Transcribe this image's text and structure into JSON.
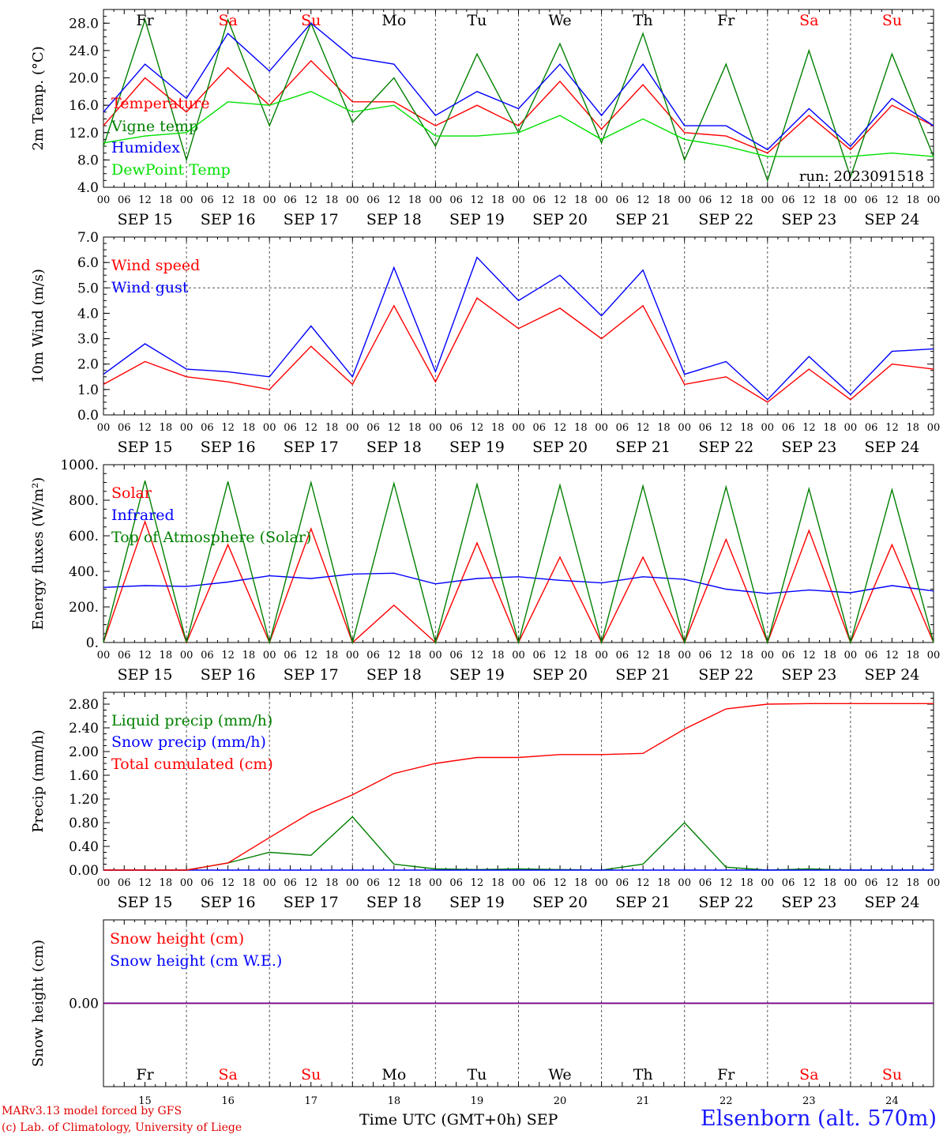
{
  "chart_data": [
    {
      "type": "line",
      "ylabel": "2m Temp. (°C)",
      "ylim": [
        4,
        30
      ],
      "yticks": [
        "4.0",
        "8.0",
        "12.0",
        "16.0",
        "20.0",
        "24.0",
        "28.0"
      ],
      "legend_placement": "left",
      "annotation": "run: 2023091518",
      "x": [
        "2023-09-15 00",
        "2023-09-15 12",
        "2023-09-16 00",
        "2023-09-16 12",
        "2023-09-17 00",
        "2023-09-17 12",
        "2023-09-18 00",
        "2023-09-18 12",
        "2023-09-19 00",
        "2023-09-19 12",
        "2023-09-20 00",
        "2023-09-20 12",
        "2023-09-21 00",
        "2023-09-21 12",
        "2023-09-22 00",
        "2023-09-22 12",
        "2023-09-23 00",
        "2023-09-23 12",
        "2023-09-24 00",
        "2023-09-24 12",
        "2023-09-25 00"
      ],
      "series": [
        {
          "name": "Temperature",
          "color": "#ff0000",
          "values": [
            13.0,
            20.0,
            15.0,
            21.5,
            16.0,
            22.5,
            16.5,
            16.5,
            13.0,
            16.0,
            13.0,
            19.5,
            12.5,
            19.0,
            12.0,
            11.5,
            9.0,
            14.5,
            9.5,
            16.0,
            13.0
          ]
        },
        {
          "name": "Vigne temp",
          "color": "#008000",
          "values": [
            10.0,
            28.5,
            8.0,
            28.5,
            13.0,
            28.0,
            13.5,
            20.0,
            10.0,
            23.5,
            12.0,
            25.0,
            10.5,
            26.5,
            8.0,
            22.0,
            5.0,
            24.0,
            5.5,
            23.5,
            8.5
          ]
        },
        {
          "name": "Humidex",
          "color": "#0000ff",
          "values": [
            15.0,
            22.0,
            17.0,
            26.5,
            21.0,
            28.0,
            23.0,
            22.0,
            14.5,
            18.0,
            15.5,
            22.0,
            14.5,
            22.0,
            13.0,
            13.0,
            9.5,
            15.5,
            10.0,
            17.0,
            13.0
          ]
        },
        {
          "name": "DewPoint Temp",
          "color": "#00e000",
          "values": [
            10.5,
            11.5,
            12.0,
            16.5,
            16.0,
            18.0,
            15.0,
            16.0,
            11.5,
            11.5,
            12.0,
            14.5,
            11.0,
            14.0,
            11.0,
            10.0,
            8.5,
            8.5,
            8.5,
            9.0,
            8.5
          ]
        }
      ]
    },
    {
      "type": "line",
      "ylabel": "10m Wind (m/s)",
      "ylim": [
        0,
        7
      ],
      "yticks": [
        "0.0",
        "1.0",
        "2.0",
        "3.0",
        "4.0",
        "5.0",
        "6.0",
        "7.0"
      ],
      "legend_placement": "left",
      "x": [
        "2023-09-15 00",
        "2023-09-15 12",
        "2023-09-16 00",
        "2023-09-16 12",
        "2023-09-17 00",
        "2023-09-17 12",
        "2023-09-18 00",
        "2023-09-18 12",
        "2023-09-19 00",
        "2023-09-19 12",
        "2023-09-20 00",
        "2023-09-20 12",
        "2023-09-21 00",
        "2023-09-21 12",
        "2023-09-22 00",
        "2023-09-22 12",
        "2023-09-23 00",
        "2023-09-23 12",
        "2023-09-24 00",
        "2023-09-24 12",
        "2023-09-25 00"
      ],
      "series": [
        {
          "name": "Wind speed",
          "color": "#ff0000",
          "values": [
            1.2,
            2.1,
            1.5,
            1.3,
            1.0,
            2.7,
            1.2,
            4.3,
            1.3,
            4.6,
            3.4,
            4.2,
            3.0,
            4.3,
            1.2,
            1.5,
            0.5,
            1.8,
            0.6,
            2.0,
            1.8
          ]
        },
        {
          "name": "Wind gust",
          "color": "#0000ff",
          "values": [
            1.6,
            2.8,
            1.8,
            1.7,
            1.5,
            3.5,
            1.5,
            5.8,
            1.7,
            6.2,
            4.5,
            5.5,
            3.9,
            5.7,
            1.6,
            2.1,
            0.6,
            2.3,
            0.8,
            2.5,
            2.6
          ]
        }
      ]
    },
    {
      "type": "line",
      "ylabel": "Energy fluxes (W/m²)",
      "ylim": [
        0,
        1000
      ],
      "yticks": [
        "0.",
        "200.",
        "400.",
        "600.",
        "800.",
        "1000."
      ],
      "legend_placement": "left",
      "x": [
        "2023-09-15 00",
        "2023-09-15 12",
        "2023-09-16 00",
        "2023-09-16 12",
        "2023-09-17 00",
        "2023-09-17 12",
        "2023-09-18 00",
        "2023-09-18 12",
        "2023-09-19 00",
        "2023-09-19 12",
        "2023-09-20 00",
        "2023-09-20 12",
        "2023-09-21 00",
        "2023-09-21 12",
        "2023-09-22 00",
        "2023-09-22 12",
        "2023-09-23 00",
        "2023-09-23 12",
        "2023-09-24 00",
        "2023-09-24 12",
        "2023-09-25 00"
      ],
      "series": [
        {
          "name": "Solar",
          "color": "#ff0000",
          "values": [
            0,
            680,
            0,
            550,
            0,
            640,
            0,
            210,
            0,
            560,
            0,
            480,
            0,
            480,
            0,
            580,
            0,
            630,
            0,
            550,
            0
          ]
        },
        {
          "name": "Infrared",
          "color": "#0000ff",
          "values": [
            310,
            320,
            315,
            340,
            375,
            360,
            385,
            390,
            330,
            360,
            370,
            350,
            335,
            370,
            355,
            300,
            275,
            295,
            280,
            320,
            290
          ]
        },
        {
          "name": "Top of Atmosphere (Solar)",
          "color": "#008000",
          "values": [
            0,
            910,
            0,
            905,
            0,
            900,
            0,
            895,
            0,
            890,
            0,
            885,
            0,
            880,
            0,
            875,
            0,
            865,
            0,
            860,
            0
          ]
        }
      ]
    },
    {
      "type": "line",
      "ylabel": "Precip (mm/h)",
      "ylim": [
        0,
        3.0
      ],
      "yticks": [
        "0.00",
        "0.40",
        "0.80",
        "1.20",
        "1.60",
        "2.00",
        "2.40",
        "2.80"
      ],
      "legend_placement": "left",
      "x": [
        "2023-09-15 00",
        "2023-09-15 12",
        "2023-09-16 00",
        "2023-09-16 12",
        "2023-09-17 00",
        "2023-09-17 12",
        "2023-09-18 00",
        "2023-09-18 12",
        "2023-09-19 00",
        "2023-09-19 12",
        "2023-09-20 00",
        "2023-09-20 12",
        "2023-09-21 00",
        "2023-09-21 12",
        "2023-09-22 00",
        "2023-09-22 12",
        "2023-09-23 00",
        "2023-09-23 12",
        "2023-09-24 00",
        "2023-09-24 12",
        "2023-09-25 00"
      ],
      "series": [
        {
          "name": "Liquid precip (mm/h)",
          "color": "#008000",
          "values": [
            0,
            0,
            0,
            0.12,
            0.3,
            0.25,
            0.9,
            0.1,
            0.02,
            0.01,
            0.02,
            0.01,
            0,
            0.1,
            0.8,
            0.05,
            0,
            0.02,
            0,
            0,
            0
          ]
        },
        {
          "name": "Snow precip (mm/h)",
          "color": "#0000ff",
          "values": [
            0,
            0,
            0,
            0,
            0,
            0,
            0,
            0,
            0,
            0,
            0,
            0,
            0,
            0,
            0,
            0,
            0,
            0,
            0,
            0,
            0
          ]
        },
        {
          "name": "Total cumulated (cm)",
          "color": "#ff0000",
          "values": [
            0,
            0,
            0,
            0.12,
            0.55,
            0.97,
            1.27,
            1.63,
            1.8,
            1.9,
            1.9,
            1.95,
            1.95,
            1.97,
            2.38,
            2.72,
            2.8,
            2.81,
            2.81,
            2.81,
            2.81
          ]
        }
      ]
    },
    {
      "type": "line",
      "ylabel": "Snow height (cm)",
      "ylim": [
        -1,
        1
      ],
      "yticks": [
        "0.00"
      ],
      "legend_placement": "left",
      "x": [
        "2023-09-15 00",
        "2023-09-25 00"
      ],
      "series": [
        {
          "name": "Snow height (cm)",
          "color": "#ff0000",
          "values": [
            0,
            0
          ]
        },
        {
          "name": "Snow height (cm W.E.)",
          "color": "#0000ff",
          "values": [
            0,
            0
          ]
        }
      ]
    }
  ],
  "x_axis": {
    "hour_labels": [
      "00",
      "06",
      "12",
      "18"
    ],
    "end_label": "00",
    "date_labels": [
      "SEP 15",
      "SEP 16",
      "SEP 17",
      "SEP 18",
      "SEP 19",
      "SEP 20",
      "SEP 21",
      "SEP 22",
      "SEP 23",
      "SEP 24"
    ],
    "weekday_labels": [
      "Fr",
      "Sa",
      "Su",
      "Mo",
      "Tu",
      "We",
      "Th",
      "Fr",
      "Sa",
      "Su"
    ],
    "weekend_days": [
      1,
      2,
      8,
      9
    ],
    "day_numbers": [
      "15",
      "16",
      "17",
      "18",
      "19",
      "20",
      "21",
      "22",
      "23",
      "24"
    ],
    "month": "SEP",
    "title": "Time UTC (GMT+0h)"
  },
  "footer": {
    "credit_line1": "MARv3.13 model forced by GFS",
    "credit_line2": "(c) Lab. of Climatology, University of Liege",
    "station": "Elsenborn (alt. 570m)"
  },
  "colors": {
    "red": "#ff0000",
    "blue": "#0000ff",
    "green": "#008000",
    "lightgreen": "#00e000",
    "purple": "#800080"
  }
}
